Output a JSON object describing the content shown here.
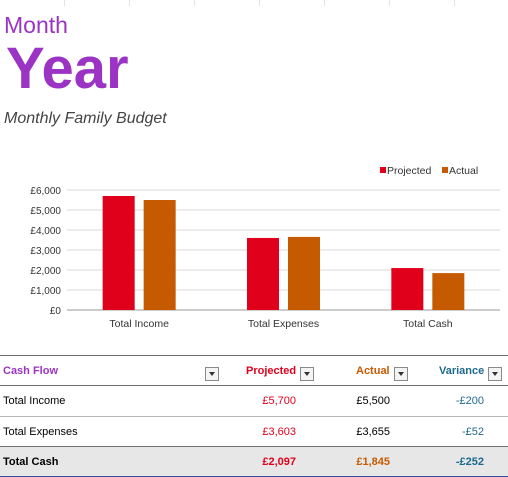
{
  "header": {
    "month": "Month",
    "year": "Year",
    "subtitle": "Monthly Family Budget"
  },
  "colors": {
    "purple": "#9b33c4",
    "projected": "#e0001b",
    "actual": "#c65a00",
    "variance": "#1e6a8d"
  },
  "chart_data": {
    "type": "bar",
    "categories": [
      "Total Income",
      "Total Expenses",
      "Total Cash"
    ],
    "series": [
      {
        "name": "Projected",
        "values": [
          5700,
          3603,
          2097
        ],
        "color": "#e0001b"
      },
      {
        "name": "Actual",
        "values": [
          5500,
          3655,
          1845
        ],
        "color": "#c65a00"
      }
    ],
    "ylim": [
      0,
      6000
    ],
    "yticks": [
      "£0",
      "£1,000",
      "£2,000",
      "£3,000",
      "£4,000",
      "£5,000",
      "£6,000"
    ],
    "grid": true,
    "legend": "top-right"
  },
  "table": {
    "headers": {
      "cash_flow": "Cash Flow",
      "projected": "Projected",
      "actual": "Actual",
      "variance": "Variance"
    },
    "rows": [
      {
        "label": "Total Income",
        "projected": "£5,700",
        "actual": "£5,500",
        "variance": "-£200"
      },
      {
        "label": "Total Expenses",
        "projected": "£3,603",
        "actual": "£3,655",
        "variance": "-£52"
      },
      {
        "label": "Total Cash",
        "projected": "£2,097",
        "actual": "£1,845",
        "variance": "-£252"
      }
    ]
  }
}
